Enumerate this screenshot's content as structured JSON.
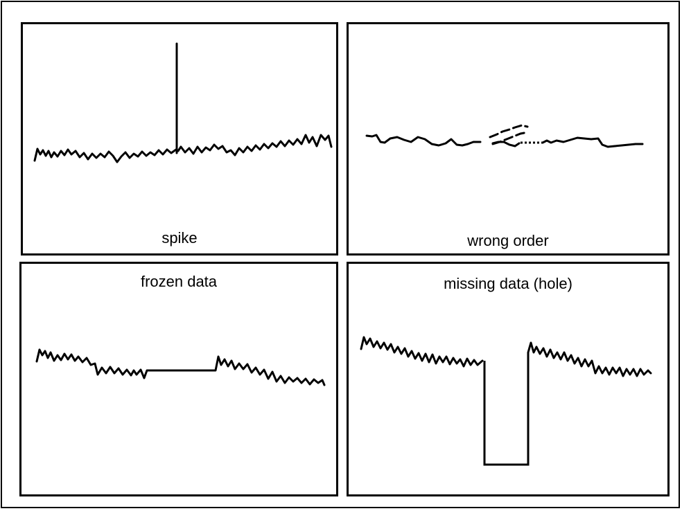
{
  "panels": {
    "spike": {
      "caption": "spike"
    },
    "order": {
      "caption": "wrong order"
    },
    "frozen": {
      "caption": "frozen data"
    },
    "missing": {
      "caption": "missing data (hole)"
    }
  },
  "colors": {
    "line": "#000000",
    "background": "#ffffff"
  }
}
